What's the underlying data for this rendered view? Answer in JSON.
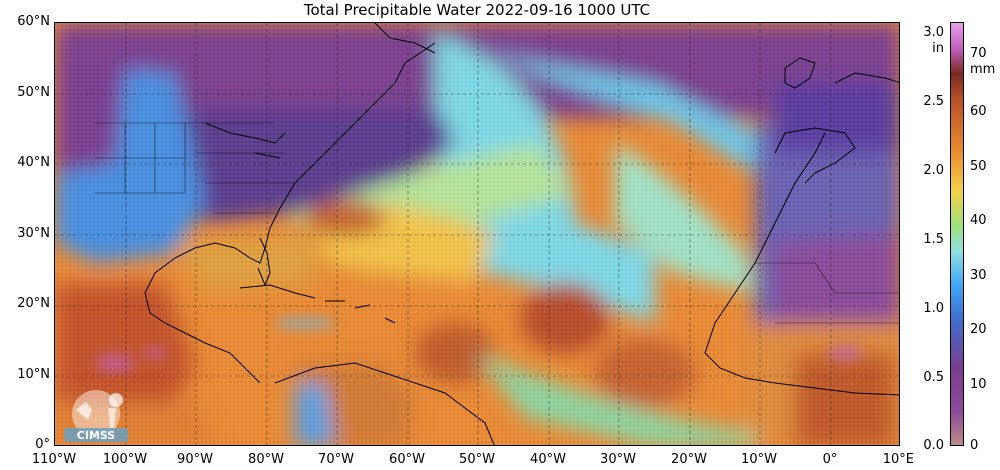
{
  "title": "Total Precipitable Water  2022-09-16 1000 UTC",
  "lat_labels": [
    "60°N",
    "50°N",
    "40°N",
    "30°N",
    "20°N",
    "10°N",
    "0°"
  ],
  "lon_labels": [
    "110°W",
    "100°W",
    "90°W",
    "80°W",
    "70°W",
    "60°W",
    "50°W",
    "40°W",
    "30°W",
    "20°W",
    "10°W",
    "0°",
    "10°E"
  ],
  "colorbar": {
    "unit_in": "in",
    "unit_mm": "mm",
    "in_ticks": [
      "3.0",
      "2.5",
      "2.0",
      "1.5",
      "1.0",
      "0.5",
      "0.0"
    ],
    "mm_ticks": [
      "70",
      "60",
      "50",
      "40",
      "30",
      "20",
      "10",
      "0"
    ]
  },
  "logo_text": "CIMSS",
  "colors": {
    "dry_purple": "#7a3d8e",
    "blue": "#3fa9f5",
    "cyan": "#8fe0e0",
    "green": "#9fe07a",
    "yellow": "#f3d24a",
    "orange": "#e88a2e",
    "dark_orange": "#b8502a",
    "magenta": "#c060c0"
  }
}
